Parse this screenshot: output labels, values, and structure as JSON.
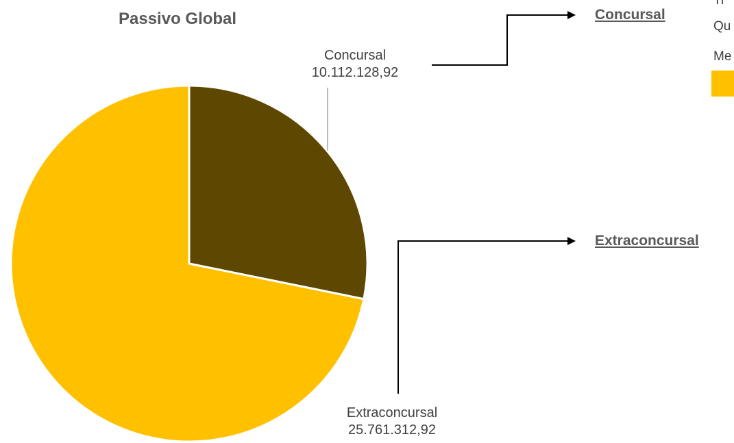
{
  "chart_data": {
    "type": "pie",
    "title": "Passivo Global",
    "slices": [
      {
        "label": "Concursal",
        "value_label": "10.112.128,92",
        "value": 10112128.92,
        "color": "#5e4700"
      },
      {
        "label": "Extraconcursal",
        "value_label": "25.761.312,92",
        "value": 25761312.92,
        "color": "#ffc000"
      }
    ]
  },
  "branches": {
    "concursal": "Concursal",
    "extraconcursal": "Extraconcursal"
  },
  "side_panel": {
    "line1": "Tr",
    "line2": "Qu",
    "line3": "Me",
    "swatch_color": "#ffc000"
  }
}
